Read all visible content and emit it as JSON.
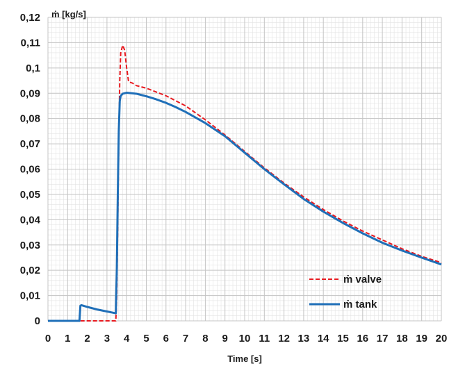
{
  "chart_data": {
    "type": "line",
    "title": "",
    "xlabel": "Time [s]",
    "ylabel": "ṁ [kg/s]",
    "xlim": [
      0,
      20
    ],
    "ylim": [
      0,
      0.12
    ],
    "xticks": [
      0,
      1,
      2,
      3,
      4,
      5,
      6,
      7,
      8,
      9,
      10,
      11,
      12,
      13,
      14,
      15,
      16,
      17,
      18,
      19,
      20
    ],
    "yticks": [
      "0",
      "0,01",
      "0,02",
      "0,03",
      "0,04",
      "0,05",
      "0,06",
      "0,07",
      "0,08",
      "0,09",
      "0,1",
      "0,11",
      "0,12"
    ],
    "grid": true,
    "legend_position": "bottom-right",
    "series": [
      {
        "name": "ṁ valve",
        "color": "#e8191f",
        "style": "dashed",
        "x": [
          1.65,
          3.45,
          3.5,
          3.55,
          3.6,
          3.65,
          3.7,
          3.8,
          3.9,
          4.0,
          4.1,
          4.3,
          4.5,
          5,
          5.5,
          6,
          6.5,
          7,
          8,
          9,
          10,
          11,
          12,
          13,
          14,
          15,
          16,
          17,
          18,
          19,
          20
        ],
        "y": [
          0,
          0,
          0.01,
          0.04,
          0.07,
          0.095,
          0.106,
          0.109,
          0.107,
          0.1,
          0.0945,
          0.094,
          0.093,
          0.092,
          0.0905,
          0.089,
          0.087,
          0.085,
          0.0795,
          0.0735,
          0.067,
          0.0605,
          0.0545,
          0.049,
          0.044,
          0.0395,
          0.0355,
          0.032,
          0.0285,
          0.0255,
          0.023
        ]
      },
      {
        "name": "ṁ tank",
        "color": "#1f6fb8",
        "style": "solid",
        "x": [
          0,
          1.6,
          1.65,
          1.7,
          2.0,
          2.5,
          3.0,
          3.45,
          3.5,
          3.55,
          3.6,
          3.65,
          3.7,
          3.8,
          4.0,
          4.5,
          5,
          5.5,
          6,
          6.5,
          7,
          8,
          9,
          10,
          11,
          12,
          13,
          14,
          15,
          16,
          17,
          18,
          19,
          20
        ],
        "y": [
          0,
          0,
          0.006,
          0.0062,
          0.0055,
          0.0045,
          0.0037,
          0.003,
          0.02,
          0.05,
          0.075,
          0.087,
          0.089,
          0.0898,
          0.0902,
          0.0898,
          0.0888,
          0.0876,
          0.0862,
          0.0845,
          0.0826,
          0.0782,
          0.073,
          0.0665,
          0.06,
          0.054,
          0.0482,
          0.0432,
          0.0387,
          0.0346,
          0.0309,
          0.0278,
          0.025,
          0.0223
        ]
      }
    ]
  }
}
